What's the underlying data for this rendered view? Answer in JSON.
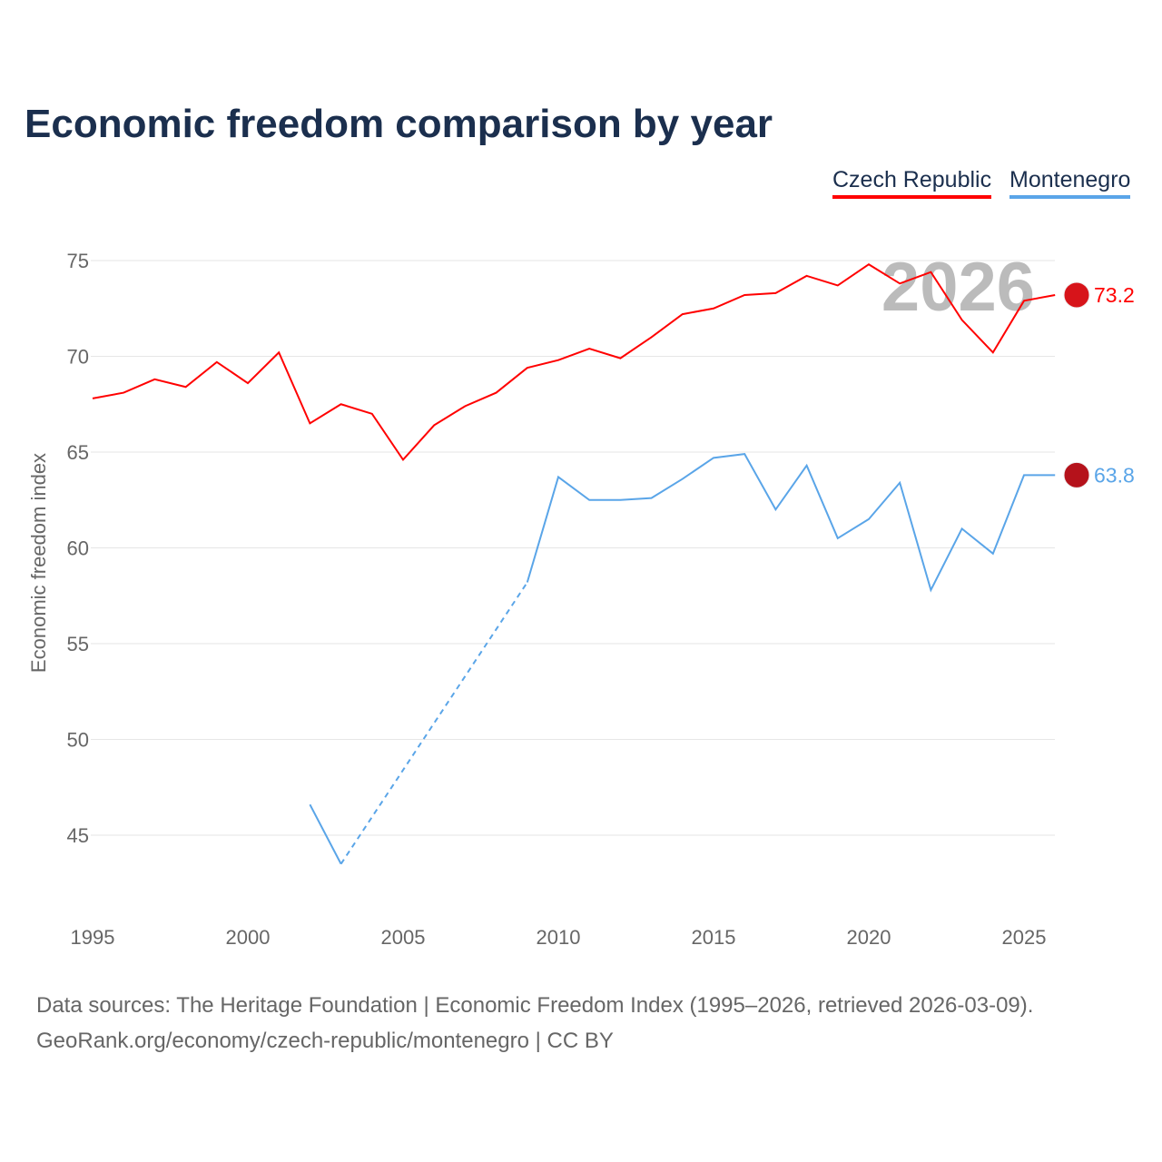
{
  "title": "Economic freedom comparison by year",
  "chart_data": {
    "type": "line",
    "title": "Economic freedom comparison by year",
    "ylabel": "Economic freedom index",
    "xlabel": "",
    "ylim": [
      41,
      77
    ],
    "xlim": [
      1995,
      2026
    ],
    "yticks": [
      45,
      50,
      55,
      60,
      65,
      70,
      75
    ],
    "xticks": [
      1995,
      2000,
      2005,
      2010,
      2015,
      2020,
      2025
    ],
    "year_watermark": "2026",
    "x": [
      1995,
      1996,
      1997,
      1998,
      1999,
      2000,
      2001,
      2002,
      2003,
      2004,
      2005,
      2006,
      2007,
      2008,
      2009,
      2010,
      2011,
      2012,
      2013,
      2014,
      2015,
      2016,
      2017,
      2018,
      2019,
      2020,
      2021,
      2022,
      2023,
      2024,
      2025,
      2026
    ],
    "series": [
      {
        "name": "Czech Republic",
        "color": "#ff0000",
        "last_label": "73.2",
        "values": [
          67.8,
          68.1,
          68.8,
          68.4,
          69.7,
          68.6,
          70.2,
          66.5,
          67.5,
          67.0,
          64.6,
          66.4,
          67.4,
          68.1,
          69.4,
          69.8,
          70.4,
          69.9,
          71.0,
          72.2,
          72.5,
          73.2,
          73.3,
          74.2,
          73.7,
          74.8,
          73.8,
          74.4,
          71.9,
          70.2,
          72.9,
          73.2
        ]
      },
      {
        "name": "Montenegro",
        "color": "#5aa5e8",
        "last_label": "63.8",
        "values": [
          null,
          null,
          null,
          null,
          null,
          null,
          null,
          46.6,
          43.5,
          null,
          null,
          null,
          null,
          null,
          58.2,
          63.7,
          62.5,
          62.5,
          62.6,
          63.6,
          64.7,
          64.9,
          62.0,
          64.3,
          60.5,
          61.5,
          63.4,
          57.8,
          61.0,
          59.7,
          63.8,
          63.8
        ]
      }
    ],
    "legend": "top-right",
    "grid": true
  },
  "footer": {
    "line1": "Data sources: The Heritage Foundation | Economic Freedom Index (1995–2026, retrieved 2026-03-09).",
    "line2": "GeoRank.org/economy/czech-republic/montenegro | CC BY"
  }
}
